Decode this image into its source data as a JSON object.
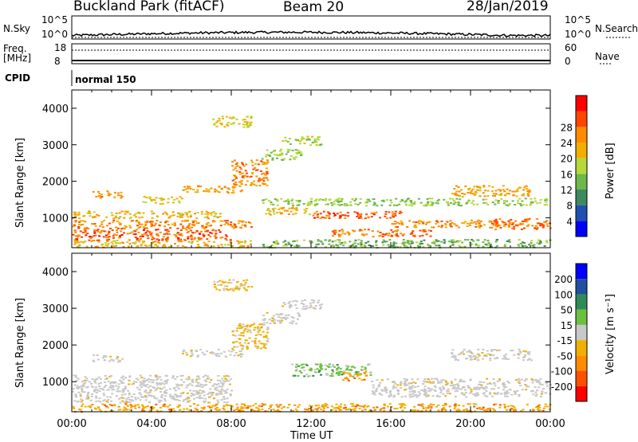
{
  "header": {
    "title": "Buckland Park (fitACF)",
    "beam": "Beam 20",
    "date": "28/Jan/2019"
  },
  "top_strip": {
    "left_label": "N.Sky",
    "left_ticks": [
      "10^5",
      "10^0"
    ],
    "right_ticks": [
      "10^5",
      "10^0"
    ],
    "right_label": "N.Search"
  },
  "freq_strip": {
    "left_label_1": "Freq.",
    "left_label_2": "[MHz]",
    "left_ticks": [
      "18",
      "8"
    ],
    "right_ticks": [
      "60",
      "0"
    ],
    "right_label": "Nave"
  },
  "cpid": {
    "label": "CPID",
    "value": "normal 150"
  },
  "colors": {
    "axis": "#000000",
    "power_scale": [
      "#0000ff",
      "#2050b0",
      "#3d8a5e",
      "#6cb84a",
      "#b5d93a",
      "#f0b000",
      "#ff8c00",
      "#ff4500",
      "#ff0000"
    ],
    "velocity_scale": [
      "#ff0000",
      "#ff5000",
      "#ff8c00",
      "#f0b000",
      "#c8c8c8",
      "#c8c8c8",
      "#6cc040",
      "#2e8b57",
      "#1e4fa0",
      "#0000ff"
    ]
  },
  "chart_data": [
    {
      "type": "heatmap",
      "name": "power",
      "ylabel": "Slant Range [km]",
      "yticks": [
        "1000",
        "2000",
        "3000",
        "4000"
      ],
      "ylim": [
        180,
        4500
      ],
      "xlim": [
        0,
        24
      ],
      "colorbar_label": "Power [dB]",
      "colorbar_ticks": [
        "4",
        "8",
        "12",
        "16",
        "20",
        "24",
        "28"
      ],
      "clim": [
        0,
        32
      ],
      "bands": [
        {
          "t": [
            0.0,
            8.0
          ],
          "r": [
            400,
            700
          ],
          "v": 27
        },
        {
          "t": [
            0.0,
            9.0
          ],
          "r": [
            720,
            950
          ],
          "v": 24
        },
        {
          "t": [
            0.0,
            7.5
          ],
          "r": [
            1000,
            1200
          ],
          "v": 20
        },
        {
          "t": [
            1.0,
            2.5
          ],
          "r": [
            1550,
            1750
          ],
          "v": 23
        },
        {
          "t": [
            3.5,
            5.5
          ],
          "r": [
            1400,
            1600
          ],
          "v": 18
        },
        {
          "t": [
            5.5,
            8.5
          ],
          "r": [
            1700,
            1900
          ],
          "v": 22
        },
        {
          "t": [
            8.0,
            9.8
          ],
          "r": [
            1900,
            2600
          ],
          "v": 24
        },
        {
          "t": [
            9.5,
            11.5
          ],
          "r": [
            2600,
            2900
          ],
          "v": 14
        },
        {
          "t": [
            10.5,
            12.5
          ],
          "r": [
            3000,
            3250
          ],
          "v": 15
        },
        {
          "t": [
            7.0,
            9.0
          ],
          "r": [
            3500,
            3800
          ],
          "v": 18
        },
        {
          "t": [
            9.5,
            23.8
          ],
          "r": [
            1350,
            1550
          ],
          "v": 14
        },
        {
          "t": [
            12.0,
            16.5
          ],
          "r": [
            1000,
            1200
          ],
          "v": 27
        },
        {
          "t": [
            9.5,
            12.0
          ],
          "r": [
            1100,
            1300
          ],
          "v": 20
        },
        {
          "t": [
            13.0,
            18.0
          ],
          "r": [
            500,
            700
          ],
          "v": 25
        },
        {
          "t": [
            16.0,
            22.0
          ],
          "r": [
            750,
            950
          ],
          "v": 24
        },
        {
          "t": [
            21.0,
            24.0
          ],
          "r": [
            700,
            1000
          ],
          "v": 26
        },
        {
          "t": [
            19.0,
            23.0
          ],
          "r": [
            1600,
            1900
          ],
          "v": 22
        },
        {
          "t": [
            9.5,
            24.0
          ],
          "r": [
            200,
            420
          ],
          "v": 12
        },
        {
          "t": [
            0.0,
            9.0
          ],
          "r": [
            200,
            400
          ],
          "v": 20
        }
      ]
    },
    {
      "type": "heatmap",
      "name": "velocity",
      "ylabel": "Slant Range [km]",
      "yticks": [
        "1000",
        "2000",
        "3000",
        "4000"
      ],
      "ylim": [
        180,
        4500
      ],
      "xlim": [
        0,
        24
      ],
      "xticks": [
        "00:00",
        "04:00",
        "08:00",
        "12:00",
        "16:00",
        "20:00",
        "00:00"
      ],
      "xlabel": "Time UT",
      "colorbar_label": "Velocity [m s⁻¹]",
      "colorbar_ticks": [
        "-200",
        "-100",
        "-50",
        "-15",
        "15",
        "50",
        "100",
        "200"
      ],
      "bands": [
        {
          "t": [
            0.0,
            8.0
          ],
          "r": [
            450,
            1200
          ],
          "v": "grey"
        },
        {
          "t": [
            0.0,
            9.5
          ],
          "r": [
            200,
            420
          ],
          "v": "orange"
        },
        {
          "t": [
            1.0,
            2.5
          ],
          "r": [
            1550,
            1750
          ],
          "v": "grey"
        },
        {
          "t": [
            5.5,
            8.5
          ],
          "r": [
            1700,
            1900
          ],
          "v": "grey"
        },
        {
          "t": [
            8.0,
            9.8
          ],
          "r": [
            1900,
            2600
          ],
          "v": "yellow"
        },
        {
          "t": [
            9.5,
            11.5
          ],
          "r": [
            2600,
            2900
          ],
          "v": "grey"
        },
        {
          "t": [
            10.5,
            12.5
          ],
          "r": [
            3000,
            3250
          ],
          "v": "grey"
        },
        {
          "t": [
            7.0,
            9.0
          ],
          "r": [
            3500,
            3800
          ],
          "v": "yellow"
        },
        {
          "t": [
            11.0,
            15.0
          ],
          "r": [
            1150,
            1500
          ],
          "v": "green"
        },
        {
          "t": [
            13.5,
            14.8
          ],
          "r": [
            1050,
            1300
          ],
          "v": "orange"
        },
        {
          "t": [
            15.0,
            24.0
          ],
          "r": [
            600,
            1100
          ],
          "v": "grey"
        },
        {
          "t": [
            19.0,
            23.0
          ],
          "r": [
            1600,
            1900
          ],
          "v": "grey"
        },
        {
          "t": [
            9.5,
            24.0
          ],
          "r": [
            200,
            420
          ],
          "v": "orange"
        }
      ]
    }
  ]
}
